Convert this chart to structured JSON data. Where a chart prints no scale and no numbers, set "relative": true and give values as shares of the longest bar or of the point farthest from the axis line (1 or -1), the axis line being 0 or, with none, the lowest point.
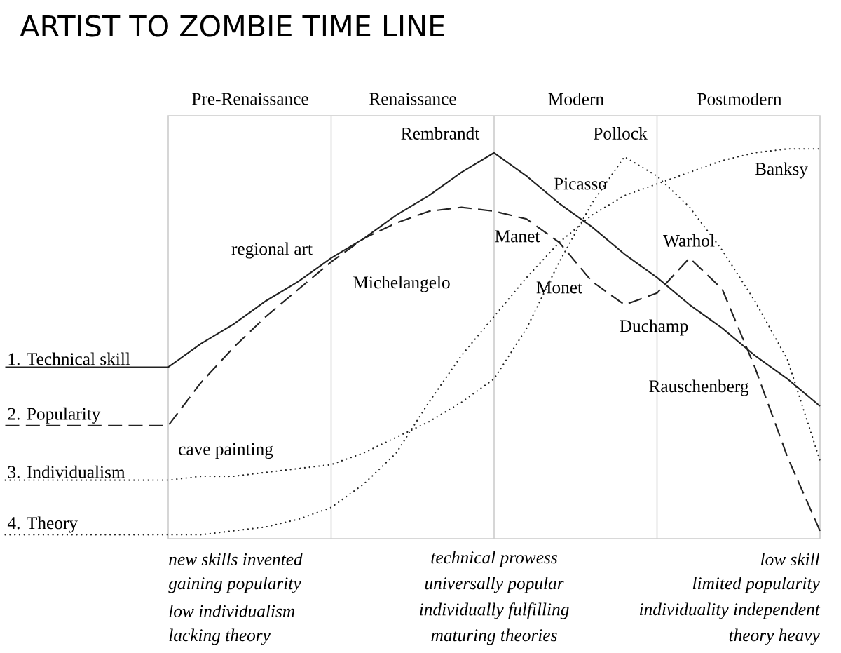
{
  "chart_data": {
    "type": "line",
    "title": "ARTIST TO ZOMBIE TIME LINE",
    "relative": true,
    "legend": false,
    "grid": "x",
    "categories": [
      null,
      null,
      null,
      null,
      null,
      null,
      null,
      null,
      null,
      null,
      null,
      null,
      null,
      null,
      null,
      null,
      null,
      null,
      null,
      null,
      null,
      null,
      null,
      null,
      null,
      null
    ],
    "series": [
      {
        "name": "1. Technical skill",
        "color": "#222222",
        "line_style": "solid",
        "values": [
          0.44,
          0.44,
          0.44,
          0.44,
          0.44,
          0.44,
          0.5,
          0.55,
          0.61,
          0.66,
          0.72,
          0.77,
          0.83,
          0.88,
          0.94,
          0.99,
          0.93,
          0.86,
          0.8,
          0.73,
          0.67,
          0.6,
          0.54,
          0.47,
          0.41,
          0.34
        ]
      },
      {
        "name": "2. Popularity",
        "color": "#222222",
        "line_style": "dashed",
        "values": [
          0.29,
          0.29,
          0.29,
          0.29,
          0.29,
          0.29,
          0.4,
          0.49,
          0.57,
          0.64,
          0.71,
          0.77,
          0.81,
          0.84,
          0.85,
          0.84,
          0.82,
          0.76,
          0.66,
          0.6,
          0.63,
          0.72,
          0.64,
          0.44,
          0.21,
          0.02
        ]
      },
      {
        "name": "3. Individualism",
        "color": "#222222",
        "line_style": "dotted",
        "values": [
          0.15,
          0.15,
          0.15,
          0.15,
          0.15,
          0.15,
          0.16,
          0.16,
          0.17,
          0.18,
          0.19,
          0.22,
          0.26,
          0.3,
          0.35,
          0.41,
          0.54,
          0.71,
          0.86,
          0.98,
          0.93,
          0.85,
          0.74,
          0.61,
          0.46,
          0.2
        ]
      },
      {
        "name": "4. Theory",
        "color": "#222222",
        "line_style": "dotted",
        "values": [
          0.01,
          0.01,
          0.01,
          0.01,
          0.01,
          0.01,
          0.01,
          0.02,
          0.03,
          0.05,
          0.08,
          0.14,
          0.22,
          0.35,
          0.47,
          0.57,
          0.67,
          0.76,
          0.83,
          0.88,
          0.91,
          0.94,
          0.97,
          0.99,
          1.0,
          1.0
        ]
      }
    ],
    "annotations": [
      "Pre-Renaissance",
      "Renaissance",
      "Modern",
      "Postmodern",
      "Rembrandt",
      "Pollock",
      "Banksy",
      "Picasso",
      "Manet",
      "Warhol",
      "regional art",
      "Michelangelo",
      "Monet",
      "Duchamp",
      "Rauschenberg",
      "cave painting",
      "new skills invented",
      "gaining popularity",
      "low individualism",
      "lacking theory",
      "technical prowess",
      "universally popular",
      "individually fulfilling",
      "maturing theories",
      "low skill",
      "limited popularity",
      "individuality independent",
      "theory heavy"
    ]
  }
}
